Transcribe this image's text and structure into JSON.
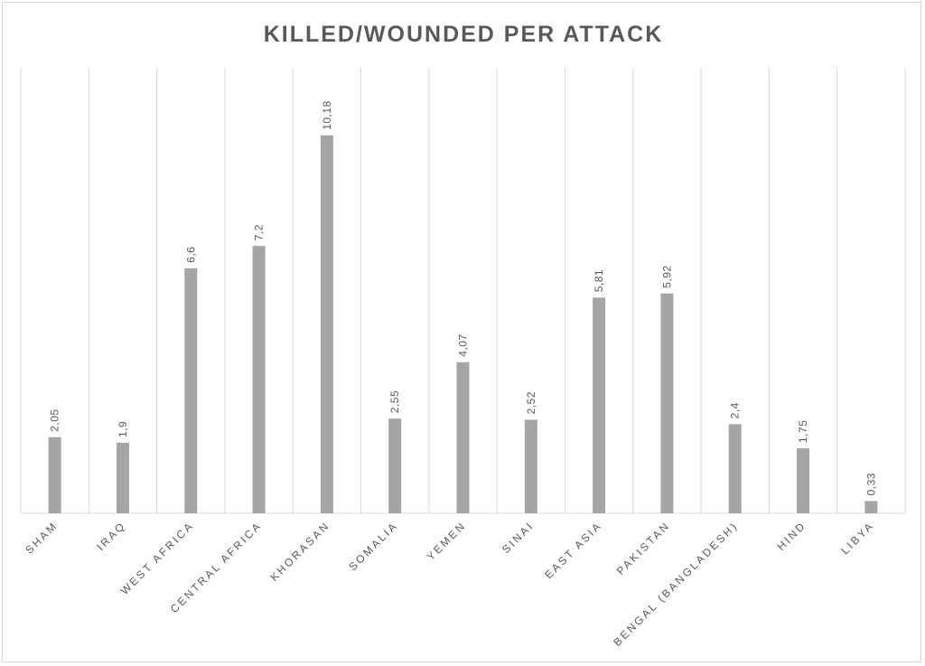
{
  "chart_data": {
    "type": "bar",
    "title": "KILLED/WOUNDED PER ATTACK",
    "categories": [
      "SHAM",
      "IRAQ",
      "WEST AFRICA",
      "CENTRAL AFRICA",
      "KHORASAN",
      "SOMALIA",
      "YEMEN",
      "SINAI",
      "EAST ASIA",
      "PAKISTAN",
      "BENGAL (BANGLADESH)",
      "HIND",
      "LIBYA"
    ],
    "values": [
      2.05,
      1.9,
      6.6,
      7.2,
      10.18,
      2.55,
      4.07,
      2.52,
      5.81,
      5.92,
      2.4,
      1.75,
      0.33
    ],
    "data_labels": [
      "2,05",
      "1,9",
      "6,6",
      "7,2",
      "10,18",
      "2,55",
      "4,07",
      "2,52",
      "5,81",
      "5,92",
      "2,4",
      "1,75",
      "0,33"
    ],
    "ylim": [
      0,
      12
    ],
    "grid": "vertical",
    "legend": "none",
    "bar_color": "#a5a5a5",
    "grid_color": "#d9d9d9",
    "text_color": "#595959"
  }
}
